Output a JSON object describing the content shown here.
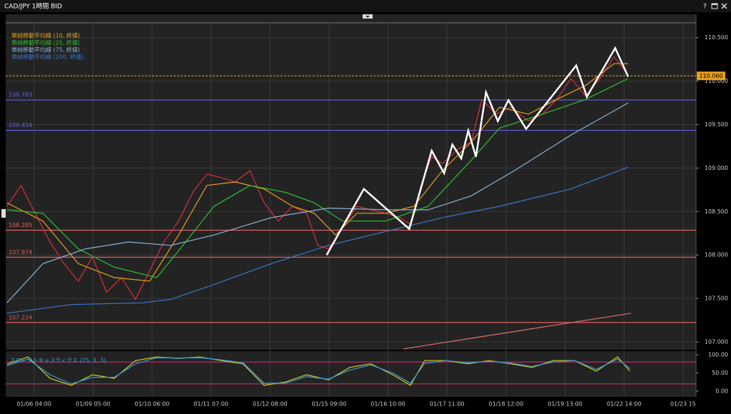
{
  "window_title": "CAD/JPY 1時間 BID",
  "help_button": "?",
  "chart_data": [
    {
      "type": "line",
      "xlim": [
        -0.48,
        11.22
      ],
      "ylim": [
        106.91,
        110.67
      ],
      "xticks": [
        {
          "value": 0,
          "label": "01/06 04:00"
        },
        {
          "value": 1,
          "label": "01/09 05:00"
        },
        {
          "value": 2,
          "label": "01/10 06:00"
        },
        {
          "value": 3,
          "label": "01/11 07:00"
        },
        {
          "value": 4,
          "label": "01/12 08:00"
        },
        {
          "value": 5,
          "label": "01/15 09:00"
        },
        {
          "value": 6,
          "label": "01/16 10:00"
        },
        {
          "value": 7,
          "label": "01/17 11:00"
        },
        {
          "value": 8,
          "label": "01/18 12:00"
        },
        {
          "value": 9,
          "label": "01/19 13:00"
        },
        {
          "value": 10,
          "label": "01/22 14:00"
        },
        {
          "value": 11,
          "label": "01/23 15"
        }
      ],
      "yticks": [
        {
          "value": 107,
          "label": "107.000"
        },
        {
          "value": 107.5,
          "label": "107.500"
        },
        {
          "value": 108,
          "label": "108.000"
        },
        {
          "value": 108.5,
          "label": "108.500"
        },
        {
          "value": 109,
          "label": "109.000"
        },
        {
          "value": 109.5,
          "label": "109.500"
        },
        {
          "value": 110,
          "label": "110.000"
        },
        {
          "value": 110.5,
          "label": "110.500"
        }
      ],
      "grid": true,
      "series": [
        {
          "color": "#d8303c",
          "x": [
            -0.46,
            -0.22,
            0.02,
            0.27,
            0.51,
            0.75,
            0.99,
            1.23,
            1.48,
            1.72,
            1.96,
            2.2,
            2.45,
            2.69,
            2.93,
            3.17,
            3.41,
            3.66,
            3.9,
            4.14,
            4.38,
            4.62,
            4.81,
            4.99,
            5.23,
            5.47,
            5.71,
            5.96,
            6.2,
            6.38,
            6.56,
            6.74,
            6.92,
            7.17,
            7.41,
            7.59,
            7.83,
            8.08,
            8.38,
            8.62,
            8.86,
            9.1,
            9.35,
            9.59,
            9.83,
            10.07
          ],
          "values": [
            108.56,
            108.8,
            108.48,
            108.15,
            107.9,
            107.7,
            107.98,
            107.57,
            107.74,
            107.49,
            107.82,
            108.15,
            108.39,
            108.72,
            108.93,
            108.89,
            108.84,
            108.97,
            108.6,
            108.39,
            108.56,
            108.48,
            108.11,
            108.07,
            108.31,
            108.56,
            108.52,
            108.48,
            108.43,
            108.35,
            108.8,
            109.13,
            109.05,
            109.21,
            109.3,
            109.79,
            109.62,
            109.7,
            109.54,
            109.62,
            109.79,
            110.03,
            109.83,
            110.03,
            110.28,
            110.07
          ]
        },
        {
          "name": "単純移動平均線 (10, 終値)",
          "color": "#e8a020",
          "x": [
            -0.46,
            0.15,
            0.75,
            1.36,
            1.96,
            2.45,
            2.93,
            3.41,
            3.9,
            4.38,
            4.75,
            5.11,
            5.47,
            5.96,
            6.44,
            6.92,
            7.41,
            7.89,
            8.38,
            8.86,
            9.35,
            9.83,
            10.07
          ],
          "values": [
            108.6,
            108.39,
            107.9,
            107.74,
            107.7,
            108.23,
            108.8,
            108.84,
            108.76,
            108.56,
            108.48,
            108.23,
            108.48,
            108.48,
            108.56,
            108.97,
            109.3,
            109.7,
            109.62,
            109.79,
            109.95,
            110.2,
            110.2
          ]
        },
        {
          "name": "単純移動平均線 (25, 終値)",
          "color": "#30c030",
          "x": [
            -0.46,
            0.15,
            0.75,
            1.36,
            2.08,
            2.57,
            3.05,
            3.66,
            4.26,
            4.75,
            5.23,
            5.96,
            6.68,
            7.41,
            7.89,
            8.62,
            9.35,
            10.07
          ],
          "values": [
            108.52,
            108.48,
            108.07,
            107.86,
            107.74,
            108.15,
            108.56,
            108.8,
            108.72,
            108.6,
            108.39,
            108.39,
            108.56,
            109.09,
            109.46,
            109.62,
            109.79,
            110.03
          ]
        },
        {
          "name": "単純移動平均線 (75, 終値)",
          "color": "#8ab4d8",
          "x": [
            -0.46,
            0.15,
            0.87,
            1.6,
            2.32,
            3.05,
            4.02,
            4.99,
            5.96,
            6.68,
            7.41,
            8.14,
            9.1,
            10.07
          ],
          "values": [
            107.45,
            107.9,
            108.07,
            108.15,
            108.11,
            108.23,
            108.43,
            108.54,
            108.52,
            108.52,
            108.68,
            108.97,
            109.38,
            109.75
          ]
        },
        {
          "name": "単純移動平均線 (200, 終値)",
          "color": "#3a78c8",
          "x": [
            -0.46,
            0.63,
            1.84,
            2.32,
            3.05,
            4.02,
            4.99,
            5.96,
            6.92,
            7.89,
            9.1,
            10.07
          ],
          "values": [
            107.33,
            107.43,
            107.45,
            107.49,
            107.66,
            107.9,
            108.11,
            108.27,
            108.43,
            108.56,
            108.76,
            109.01
          ]
        },
        {
          "color": "#ffffff",
          "x": [
            4.96,
            5.59,
            6.36,
            6.74,
            6.95,
            7.09,
            7.24,
            7.36,
            7.49,
            7.66,
            7.86,
            8.04,
            8.34,
            9.19,
            9.37,
            9.85,
            10.07
          ],
          "values": [
            108.0,
            108.76,
            108.3,
            109.2,
            108.94,
            109.27,
            109.11,
            109.43,
            109.13,
            109.87,
            109.54,
            109.78,
            109.45,
            110.18,
            109.82,
            110.38,
            110.05
          ]
        },
        {
          "color": "#e07070",
          "x": [
            6.26,
            10.12
          ],
          "values": [
            106.92,
            107.33
          ]
        }
      ],
      "levels": [
        {
          "value": 109.783,
          "color": "#6060e0"
        },
        {
          "value": 109.434,
          "color": "#6060e0"
        },
        {
          "value": 108.285,
          "color": "#e06060"
        },
        {
          "value": 107.974,
          "color": "#e06060"
        },
        {
          "value": 107.224,
          "color": "#e06060"
        }
      ],
      "current_price": {
        "value": 110.06,
        "label": "110.060",
        "color": "#e8a020"
      }
    },
    {
      "type": "line",
      "title": "スローストキャスティクス (25, 3, 3)",
      "xlim": [
        -0.48,
        11.22
      ],
      "ylim": [
        -15.7,
        109.8
      ],
      "yticks": [
        {
          "value": 0,
          "label": "0.00"
        },
        {
          "value": 50,
          "label": "50.00"
        },
        {
          "value": 100,
          "label": "100.00"
        }
      ],
      "levels": [
        {
          "value": 80,
          "color": "#c03070"
        },
        {
          "value": 20,
          "color": "#c03070"
        }
      ],
      "series": [
        {
          "color": "#c8d020",
          "x": [
            -0.46,
            -0.1,
            0.27,
            0.63,
            0.99,
            1.36,
            1.72,
            2.08,
            2.45,
            2.81,
            3.17,
            3.54,
            3.9,
            4.26,
            4.62,
            4.99,
            5.35,
            5.71,
            6.08,
            6.38,
            6.62,
            6.99,
            7.35,
            7.71,
            8.08,
            8.44,
            8.8,
            9.16,
            9.53,
            9.89,
            10.1
          ],
          "values": [
            74,
            94,
            35,
            16,
            45,
            35,
            84,
            94,
            90,
            94,
            84,
            75,
            16,
            25,
            45,
            31,
            65,
            75,
            45,
            16,
            84,
            84,
            75,
            84,
            75,
            65,
            84,
            84,
            55,
            94,
            55
          ]
        },
        {
          "color": "#3a9ad8",
          "x": [
            -0.46,
            -0.1,
            0.27,
            0.63,
            0.99,
            1.36,
            1.72,
            2.08,
            2.45,
            2.81,
            3.17,
            3.54,
            3.9,
            4.26,
            4.62,
            4.99,
            5.35,
            5.71,
            6.08,
            6.38,
            6.62,
            6.99,
            7.35,
            7.71,
            8.08,
            8.44,
            8.8,
            9.16,
            9.53,
            9.89,
            10.1
          ],
          "values": [
            70,
            88,
            45,
            20,
            38,
            38,
            75,
            92,
            91,
            92,
            86,
            78,
            22,
            22,
            40,
            33,
            58,
            72,
            50,
            22,
            76,
            84,
            78,
            82,
            77,
            68,
            80,
            84,
            60,
            88,
            62
          ]
        }
      ]
    }
  ]
}
